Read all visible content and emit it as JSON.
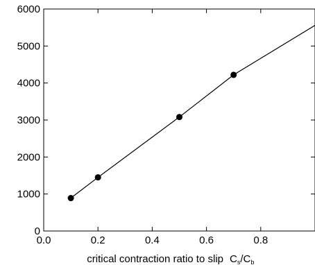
{
  "chart_data": {
    "type": "line",
    "title": "",
    "xlabel": {
      "text": "critical contraction ratio to slip",
      "symbol": "C",
      "symbol_sub_1": "s",
      "slash": "/",
      "symbol_2": "C",
      "symbol_sub_2": "b"
    },
    "ylabel": "",
    "xlim": [
      0,
      1
    ],
    "ylim": [
      0,
      6000
    ],
    "x_ticks": [
      0.0,
      0.2,
      0.4,
      0.6,
      0.8
    ],
    "x_tick_labels": [
      "0.0",
      "0.2",
      "0.4",
      "0.6",
      "0.8"
    ],
    "y_ticks": [
      0,
      1000,
      2000,
      3000,
      4000,
      5000,
      6000
    ],
    "y_tick_labels": [
      "0",
      "1000",
      "2000",
      "3000",
      "4000",
      "5000",
      "6000"
    ],
    "grid": false,
    "legend": "none",
    "series": [
      {
        "x": [
          0.1,
          0.2,
          0.5,
          0.7,
          1.0
        ],
        "y": [
          890,
          1450,
          3080,
          4220,
          5560
        ],
        "marker_points": [
          0,
          1,
          2,
          3
        ]
      }
    ],
    "colors": {
      "line": "#000000",
      "marker": "#000000",
      "axis": "#000000"
    }
  }
}
